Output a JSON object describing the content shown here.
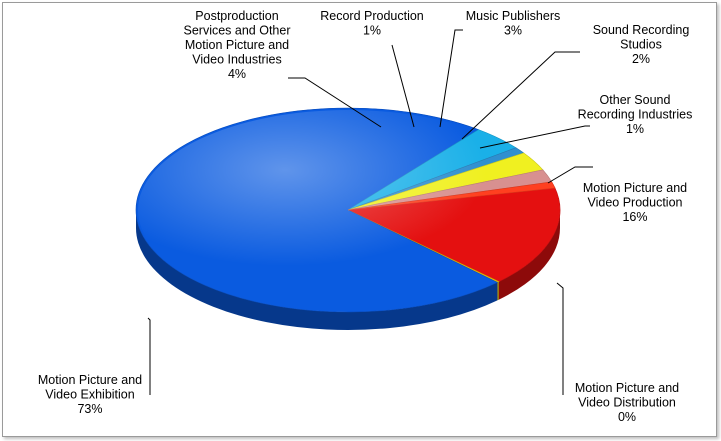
{
  "chart_data": {
    "type": "pie",
    "title": "",
    "style": "3d-tilted-pie",
    "categories": [
      "Motion Picture and Video Production",
      "Motion Picture and Video Distribution",
      "Motion Picture and Video Exhibition",
      "Postproduction Services and Other Motion Picture and Video Industries",
      "Record Production",
      "Music Publishers",
      "Sound Recording Studios",
      "Other Sound Recording Industries"
    ],
    "values": [
      16,
      0,
      73,
      4,
      1,
      3,
      2,
      1
    ],
    "colors": [
      "#e41010",
      "#f0c000",
      "#0a5be0",
      "#1ab0e8",
      "#2f8fd0",
      "#f0f020",
      "#d89090",
      "#ff4020"
    ],
    "labels": [
      {
        "lines": [
          "Motion Picture and",
          "Video Production",
          "16%"
        ]
      },
      {
        "lines": [
          "Motion Picture and",
          "Video Distribution",
          "0%"
        ]
      },
      {
        "lines": [
          "Motion Picture and",
          "Video Exhibition",
          "73%"
        ]
      },
      {
        "lines": [
          "Postproduction",
          "Services and Other",
          "Motion Picture and",
          "Video Industries",
          "4%"
        ]
      },
      {
        "lines": [
          "Record Production",
          "1%"
        ]
      },
      {
        "lines": [
          "Music Publishers",
          "3%"
        ]
      },
      {
        "lines": [
          "Sound Recording",
          "Studios",
          "2%"
        ]
      },
      {
        "lines": [
          "Other Sound",
          "Recording Industries",
          "1%"
        ]
      }
    ],
    "legend": "none",
    "grid": false
  }
}
